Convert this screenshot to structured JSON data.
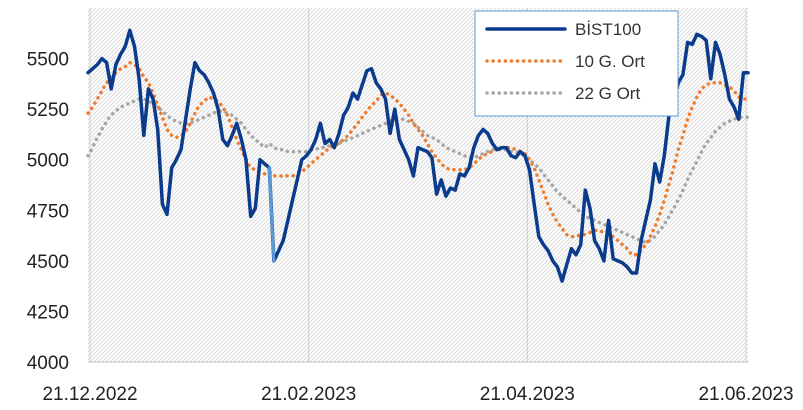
{
  "chart_data": {
    "type": "line",
    "title": "",
    "xlabel": "",
    "ylabel": "",
    "ylim": [
      4000,
      5750
    ],
    "y_ticks": [
      "4000",
      "4250",
      "4500",
      "4750",
      "5000",
      "5250",
      "5500"
    ],
    "x_ticks": [
      "21.12.2022",
      "21.02.2023",
      "21.04.2023",
      "21.06.2023"
    ],
    "grid": "vertical",
    "legend_position": "top-right",
    "series": [
      {
        "name": "BİST100",
        "color": "#0b3b8c",
        "style": "solid",
        "highlight": {
          "from": 39,
          "to": 40,
          "color": "#5b9bd5"
        },
        "values": [
          5430,
          5450,
          5470,
          5500,
          5480,
          5350,
          5470,
          5520,
          5560,
          5640,
          5560,
          5400,
          5120,
          5350,
          5300,
          5150,
          4780,
          4730,
          4960,
          5000,
          5050,
          5200,
          5350,
          5480,
          5440,
          5420,
          5380,
          5330,
          5250,
          5100,
          5070,
          5120,
          5180,
          5100,
          5000,
          4720,
          4760,
          5000,
          4980,
          4960,
          4500,
          4550,
          4600,
          4700,
          4800,
          4900,
          5000,
          5020,
          5050,
          5100,
          5180,
          5080,
          5100,
          5060,
          5130,
          5220,
          5260,
          5330,
          5300,
          5370,
          5440,
          5450,
          5380,
          5350,
          5300,
          5130,
          5250,
          5100,
          5050,
          5000,
          4920,
          5060,
          5050,
          5040,
          5010,
          4830,
          4900,
          4820,
          4860,
          4850,
          4930,
          4920,
          4960,
          5060,
          5120,
          5150,
          5130,
          5080,
          5050,
          5060,
          5060,
          5020,
          5010,
          5040,
          5020,
          4950,
          4780,
          4620,
          4580,
          4550,
          4500,
          4470,
          4400,
          4480,
          4560,
          4530,
          4580,
          4850,
          4760,
          4600,
          4560,
          4500,
          4700,
          4510,
          4500,
          4490,
          4470,
          4440,
          4440,
          4600,
          4700,
          4800,
          4980,
          4890,
          5020,
          5220,
          5280,
          5380,
          5420,
          5580,
          5570,
          5620,
          5610,
          5590,
          5400,
          5580,
          5520,
          5420,
          5300,
          5260,
          5200,
          5430,
          5430
        ]
      },
      {
        "name": "10 G. Ort",
        "color": "#ed7d31",
        "style": "dotted",
        "values": [
          5230,
          5260,
          5300,
          5340,
          5380,
          5410,
          5430,
          5450,
          5460,
          5480,
          5470,
          5450,
          5410,
          5380,
          5330,
          5270,
          5210,
          5150,
          5120,
          5110,
          5120,
          5140,
          5180,
          5230,
          5270,
          5290,
          5310,
          5300,
          5290,
          5260,
          5220,
          5160,
          5100,
          5050,
          5000,
          4960,
          4950,
          4940,
          4930,
          4940,
          4920,
          4920,
          4920,
          4920,
          4920,
          4930,
          4940,
          4960,
          4980,
          5000,
          5020,
          5040,
          5060,
          5070,
          5080,
          5100,
          5120,
          5150,
          5180,
          5210,
          5240,
          5270,
          5290,
          5320,
          5330,
          5320,
          5300,
          5280,
          5250,
          5220,
          5180,
          5150,
          5120,
          5080,
          5040,
          5010,
          4980,
          4960,
          4950,
          4950,
          4950,
          4950,
          4960,
          4980,
          5000,
          5020,
          5030,
          5040,
          5050,
          5060,
          5060,
          5060,
          5050,
          5040,
          5030,
          5000,
          4960,
          4900,
          4840,
          4780,
          4730,
          4690,
          4660,
          4630,
          4620,
          4620,
          4630,
          4630,
          4640,
          4650,
          4650,
          4640,
          4630,
          4620,
          4600,
          4580,
          4560,
          4530,
          4530,
          4550,
          4580,
          4620,
          4670,
          4730,
          4800,
          4880,
          4960,
          5050,
          5120,
          5200,
          5260,
          5310,
          5350,
          5370,
          5380,
          5380,
          5380,
          5370,
          5360,
          5340,
          5310,
          5300,
          5300
        ]
      },
      {
        "name": "22 G Ort",
        "color": "#a6a6a6",
        "style": "dotted",
        "values": [
          5020,
          5060,
          5110,
          5150,
          5190,
          5220,
          5240,
          5260,
          5270,
          5280,
          5290,
          5300,
          5300,
          5290,
          5280,
          5260,
          5240,
          5220,
          5200,
          5190,
          5180,
          5180,
          5180,
          5190,
          5200,
          5210,
          5220,
          5230,
          5240,
          5240,
          5230,
          5220,
          5200,
          5180,
          5150,
          5120,
          5100,
          5080,
          5060,
          5080,
          5060,
          5050,
          5050,
          5040,
          5040,
          5040,
          5040,
          5040,
          5050,
          5050,
          5060,
          5060,
          5070,
          5070,
          5080,
          5090,
          5100,
          5110,
          5120,
          5130,
          5140,
          5150,
          5160,
          5170,
          5180,
          5190,
          5200,
          5200,
          5200,
          5190,
          5180,
          5160,
          5140,
          5120,
          5110,
          5100,
          5080,
          5060,
          5050,
          5040,
          5030,
          5020,
          5010,
          5010,
          5020,
          5030,
          5040,
          5050,
          5050,
          5050,
          5050,
          5040,
          5040,
          5030,
          5020,
          5000,
          4980,
          4960,
          4930,
          4900,
          4870,
          4840,
          4820,
          4800,
          4780,
          4760,
          4740,
          4720,
          4710,
          4700,
          4690,
          4680,
          4670,
          4660,
          4650,
          4640,
          4630,
          4620,
          4610,
          4600,
          4590,
          4600,
          4620,
          4650,
          4680,
          4720,
          4760,
          4800,
          4850,
          4900,
          4950,
          4990,
          5040,
          5080,
          5110,
          5140,
          5160,
          5180,
          5190,
          5200,
          5210,
          5210,
          5210
        ]
      }
    ]
  }
}
